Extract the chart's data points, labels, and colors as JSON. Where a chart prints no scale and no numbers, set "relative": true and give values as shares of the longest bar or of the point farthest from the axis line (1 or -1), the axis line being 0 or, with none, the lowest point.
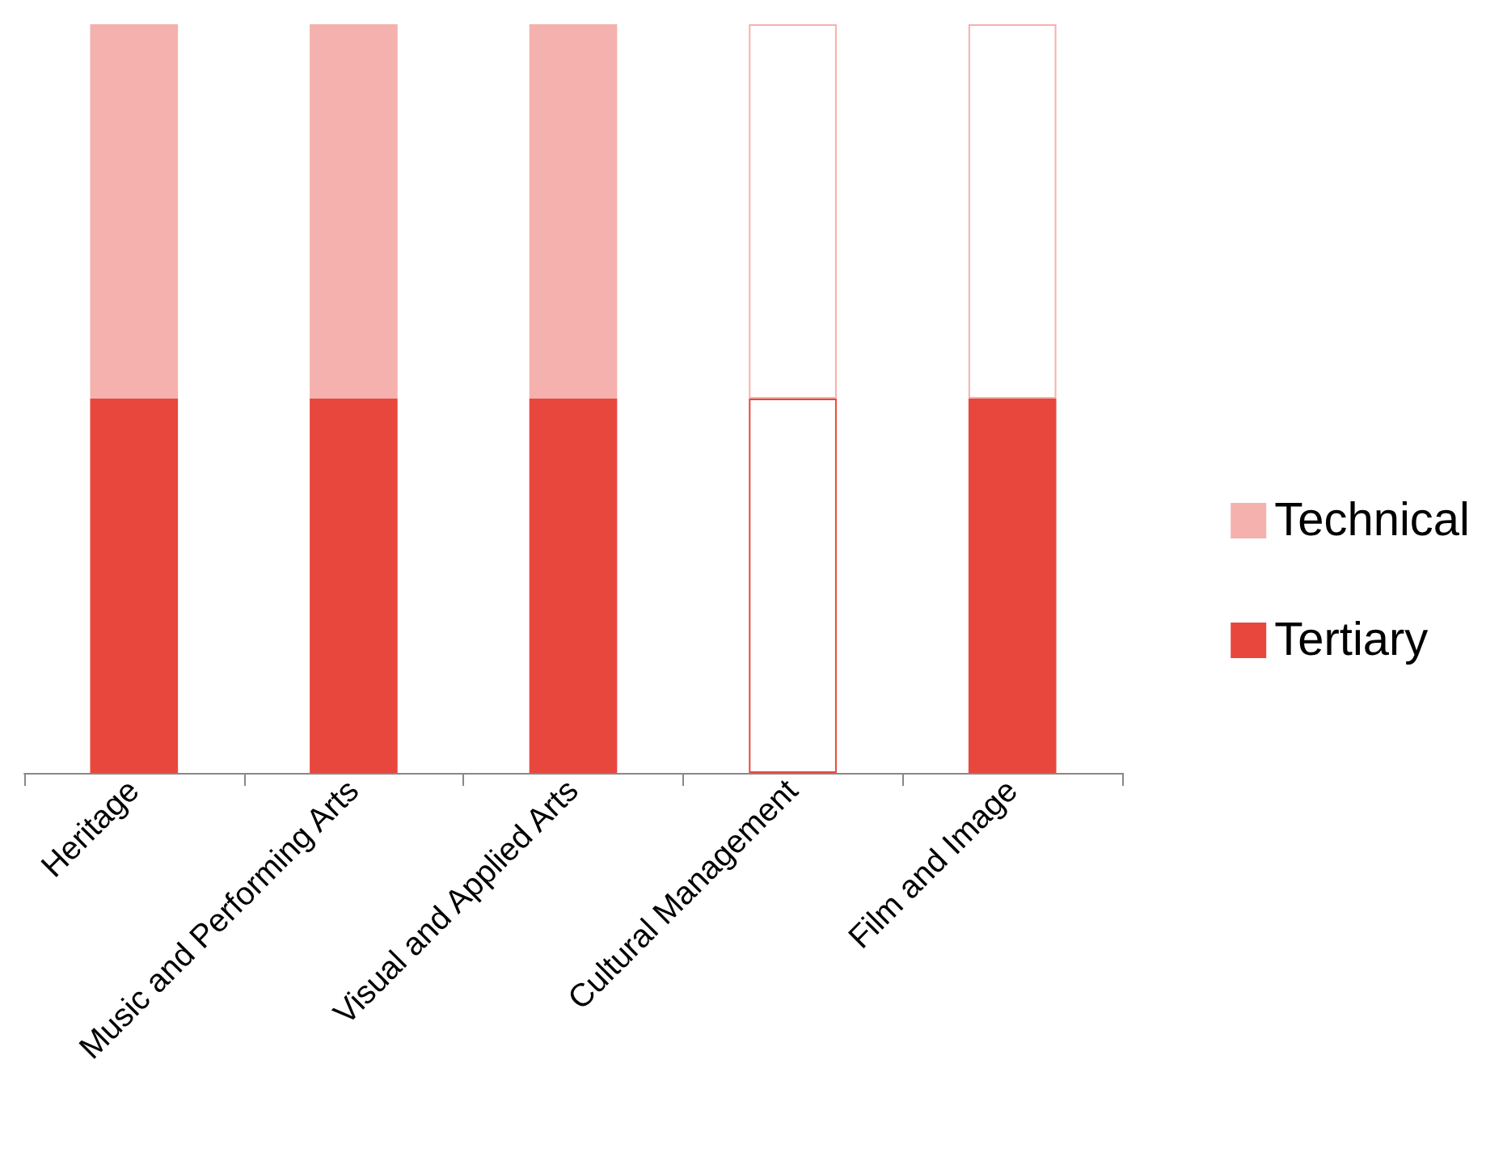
{
  "chart_data": {
    "type": "bar",
    "stacked": true,
    "relative": true,
    "legend": "right",
    "categories": [
      "Heritage",
      "Music and Performing Arts",
      "Visual and Applied Arts",
      "Cultural Management",
      "Film and Image"
    ],
    "series": [
      {
        "name": "Tertiary",
        "color": "#e8473e",
        "colors": [
          "#e8473e",
          "#e8473e",
          "#e8473e",
          "#ffffff",
          "#e8473e"
        ],
        "values": [
          0.5,
          0.5,
          0.5,
          0.5,
          0.5
        ]
      },
      {
        "name": "Technical",
        "color": "#f5b1ad",
        "colors": [
          "#f5b1ad",
          "#f5b1ad",
          "#f5b1ad",
          "#ffffff",
          "#ffffff"
        ],
        "values": [
          0.5,
          0.5,
          0.5,
          0.5,
          0.5
        ]
      }
    ]
  }
}
